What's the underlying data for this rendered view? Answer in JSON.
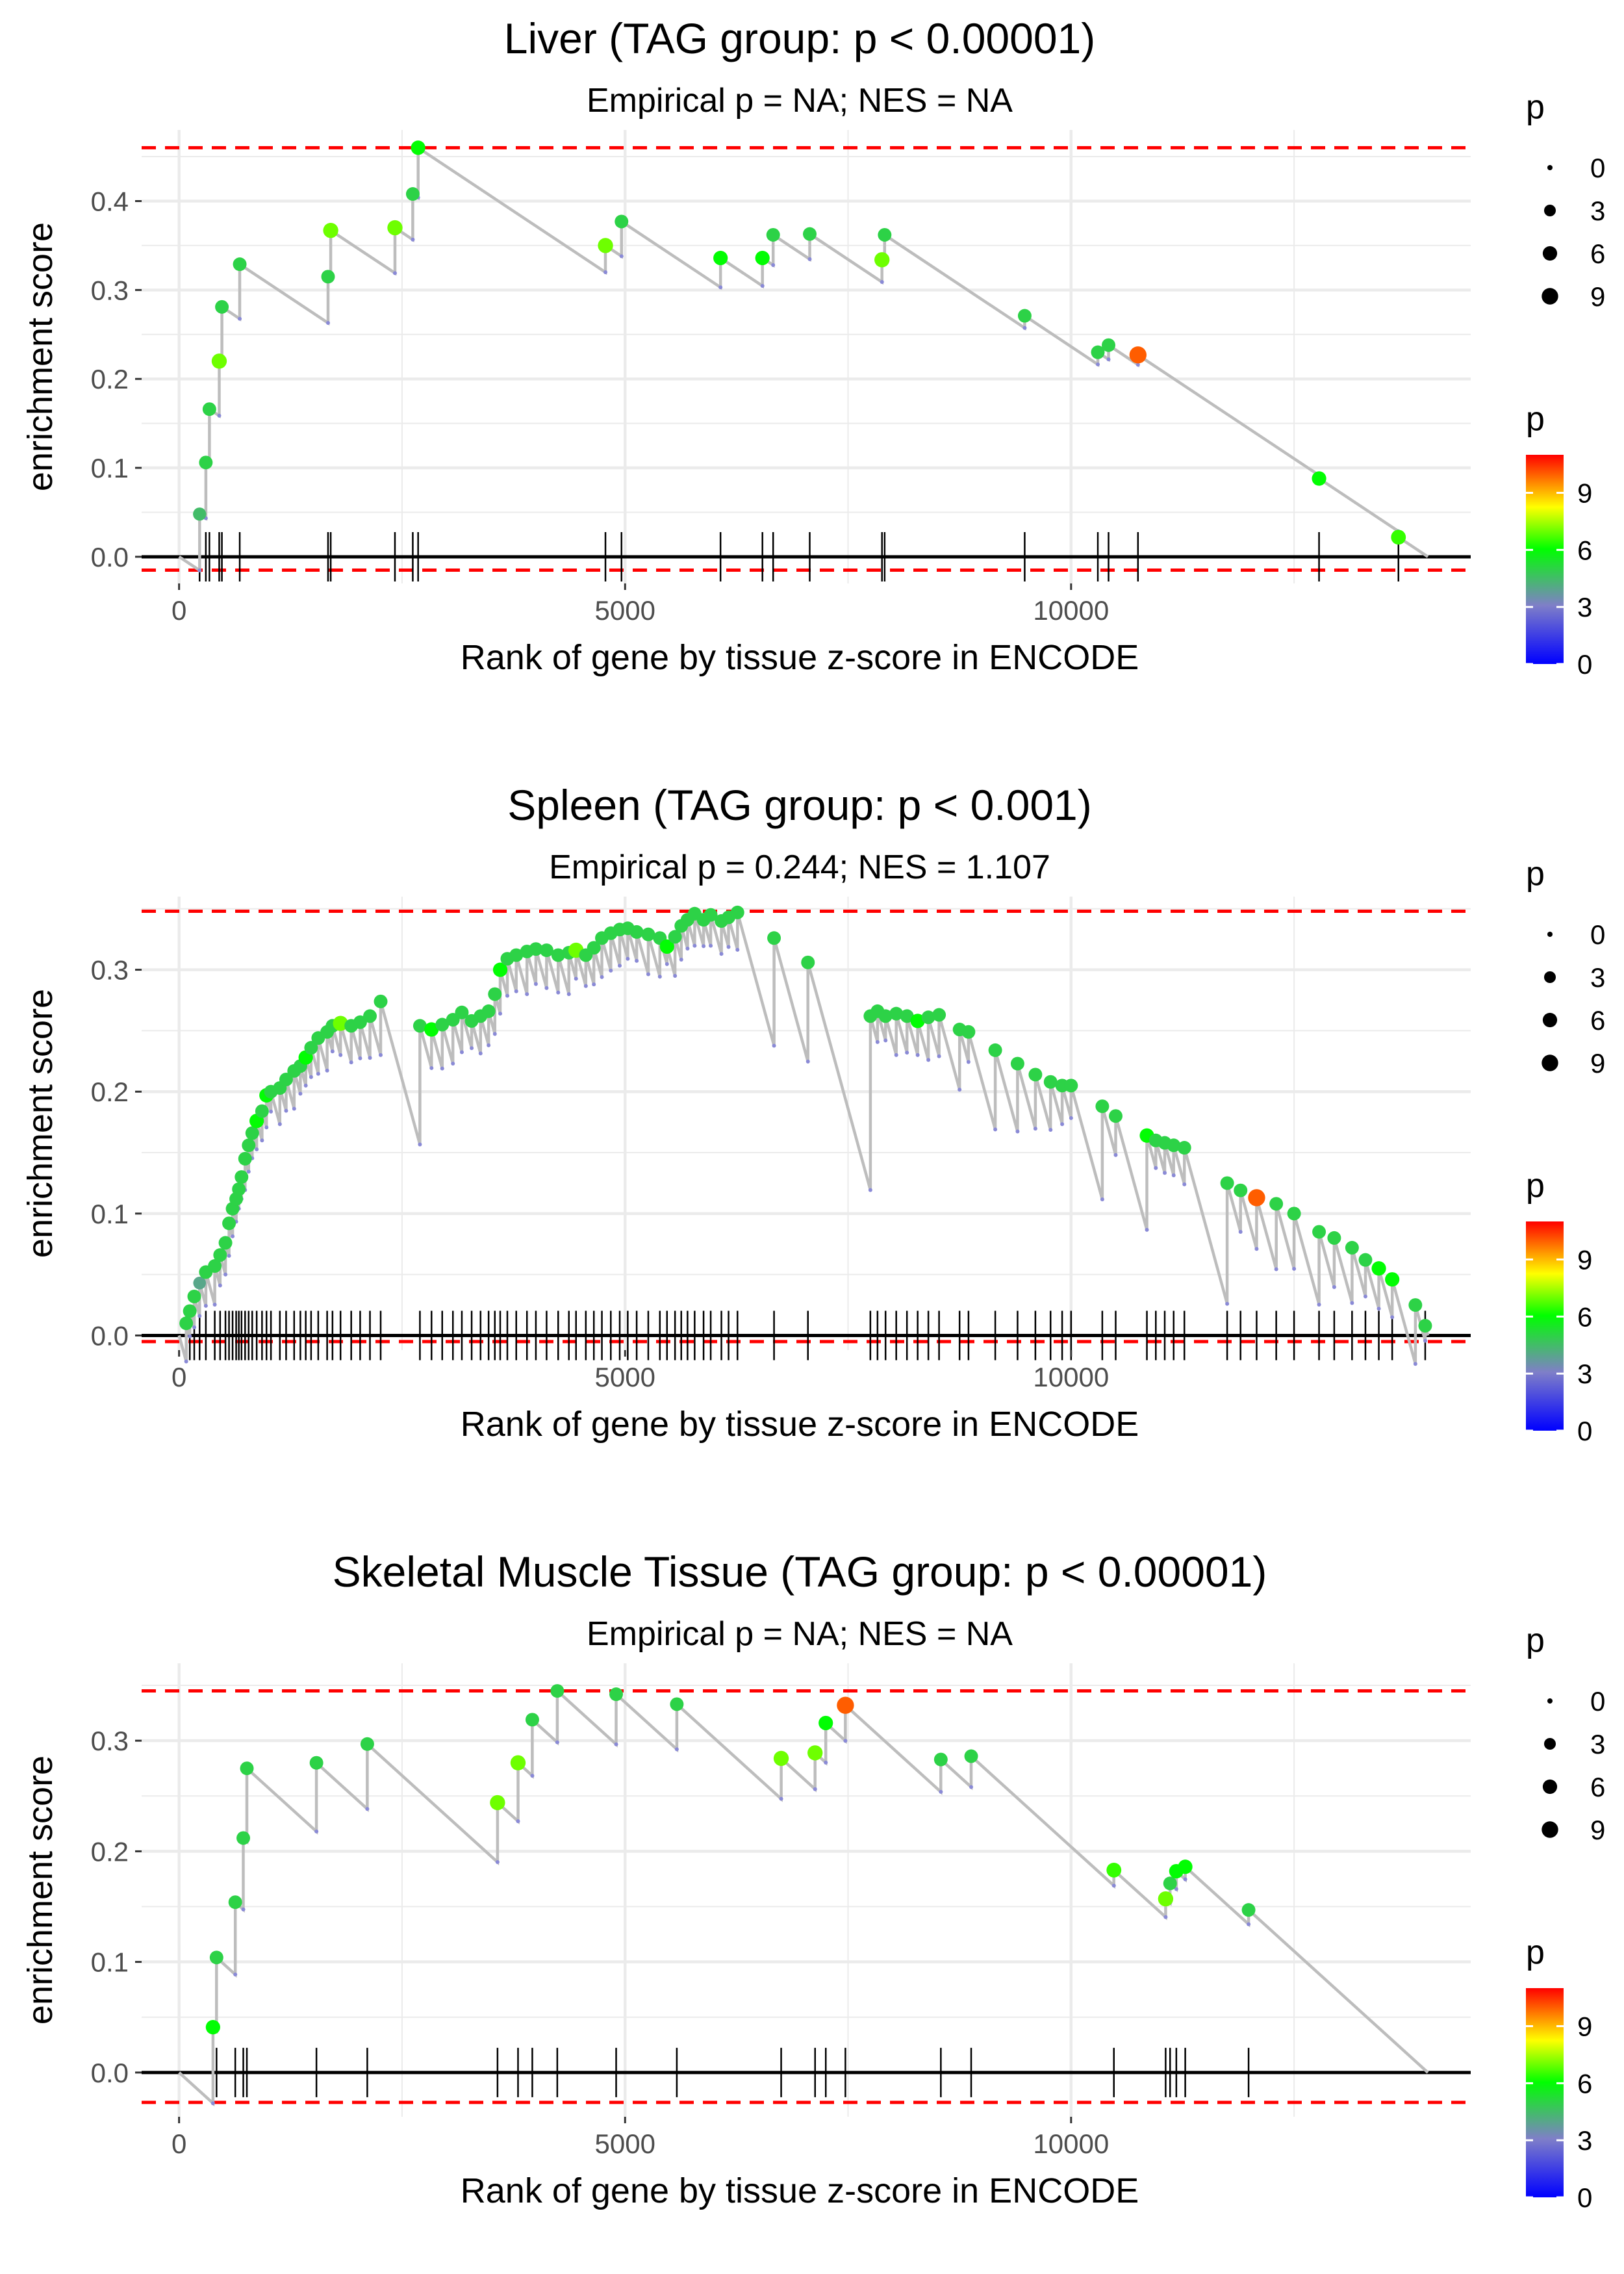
{
  "legend_labels": {
    "size_title": "p",
    "color_title": "p",
    "size_values": [
      "0",
      "3",
      "6",
      "9"
    ],
    "color_ticks": [
      "0",
      "3",
      "6",
      "9"
    ]
  },
  "colors": {
    "running_line": "#bdbdbd",
    "threshold_line": "#ff0000",
    "baseline": "#000000",
    "gridline": "#ebebeb",
    "gradient": [
      "#0000ff",
      "#7f7fc8",
      "#00ff00",
      "#ffff00",
      "#ff0000"
    ]
  },
  "chart_data": [
    {
      "type": "scatter",
      "title": "Liver (TAG group: p < 0.00001)",
      "subtitle": "Empirical p = NA; NES = NA",
      "xlabel": "Rank of gene by tissue z-score in ENCODE",
      "ylabel": "enrichment score",
      "xlim": [
        -420,
        14480
      ],
      "ylim": [
        -0.03,
        0.48
      ],
      "x_ticks": [
        0,
        5000,
        10000
      ],
      "x_tick_labels": [
        "0",
        "5000",
        "10000"
      ],
      "y_ticks": [
        0.0,
        0.1,
        0.2,
        0.3,
        0.4
      ],
      "y_tick_labels": [
        "0.0",
        "0.1",
        "0.2",
        "0.3",
        "0.4"
      ],
      "max_es": 0.46,
      "min_es": -0.015,
      "n_total": 14000,
      "hits": [
        {
          "x": 230,
          "es": 0.048,
          "p": 4.5
        },
        {
          "x": 300,
          "es": 0.106,
          "p": 5
        },
        {
          "x": 340,
          "es": 0.166,
          "p": 5
        },
        {
          "x": 450,
          "es": 0.22,
          "p": 7
        },
        {
          "x": 480,
          "es": 0.281,
          "p": 5
        },
        {
          "x": 680,
          "es": 0.329,
          "p": 5
        },
        {
          "x": 1670,
          "es": 0.315,
          "p": 5
        },
        {
          "x": 1700,
          "es": 0.367,
          "p": 7
        },
        {
          "x": 2420,
          "es": 0.37,
          "p": 7
        },
        {
          "x": 2620,
          "es": 0.408,
          "p": 5
        },
        {
          "x": 2680,
          "es": 0.46,
          "p": 6
        },
        {
          "x": 4780,
          "es": 0.35,
          "p": 7
        },
        {
          "x": 4960,
          "es": 0.377,
          "p": 5
        },
        {
          "x": 6070,
          "es": 0.336,
          "p": 6
        },
        {
          "x": 6540,
          "es": 0.336,
          "p": 6
        },
        {
          "x": 6660,
          "es": 0.362,
          "p": 5
        },
        {
          "x": 7070,
          "es": 0.363,
          "p": 5
        },
        {
          "x": 7880,
          "es": 0.334,
          "p": 7
        },
        {
          "x": 7910,
          "es": 0.362,
          "p": 5
        },
        {
          "x": 9480,
          "es": 0.271,
          "p": 5
        },
        {
          "x": 10300,
          "es": 0.23,
          "p": 5
        },
        {
          "x": 10420,
          "es": 0.238,
          "p": 5
        },
        {
          "x": 10750,
          "es": 0.227,
          "p": 10
        },
        {
          "x": 12780,
          "es": 0.088,
          "p": 6
        },
        {
          "x": 13670,
          "es": 0.022,
          "p": 6.5
        }
      ]
    },
    {
      "type": "scatter",
      "title": "Spleen (TAG group: p < 0.001)",
      "subtitle": "Empirical p = 0.244; NES = 1.107",
      "xlabel": "Rank of gene by tissue z-score in ENCODE",
      "ylabel": "enrichment score",
      "xlim": [
        -420,
        14480
      ],
      "ylim": [
        -0.012,
        0.36
      ],
      "x_ticks": [
        0,
        5000,
        10000
      ],
      "x_tick_labels": [
        "0",
        "5000",
        "10000"
      ],
      "y_ticks": [
        0.0,
        0.1,
        0.2,
        0.3
      ],
      "y_tick_labels": [
        "0.0",
        "0.1",
        "0.2",
        "0.3"
      ],
      "max_es": 0.348,
      "min_es": -0.005,
      "n_total": 14000,
      "hits": [
        {
          "x": 80,
          "es": 0.01,
          "p": 5
        },
        {
          "x": 120,
          "es": 0.02,
          "p": 5
        },
        {
          "x": 170,
          "es": 0.032,
          "p": 5
        },
        {
          "x": 230,
          "es": 0.043,
          "p": 4
        },
        {
          "x": 300,
          "es": 0.052,
          "p": 5
        },
        {
          "x": 400,
          "es": 0.057,
          "p": 5
        },
        {
          "x": 460,
          "es": 0.066,
          "p": 5
        },
        {
          "x": 520,
          "es": 0.076,
          "p": 5
        },
        {
          "x": 560,
          "es": 0.092,
          "p": 5
        },
        {
          "x": 600,
          "es": 0.104,
          "p": 5
        },
        {
          "x": 640,
          "es": 0.112,
          "p": 5
        },
        {
          "x": 670,
          "es": 0.12,
          "p": 5
        },
        {
          "x": 700,
          "es": 0.13,
          "p": 5
        },
        {
          "x": 740,
          "es": 0.145,
          "p": 5
        },
        {
          "x": 780,
          "es": 0.156,
          "p": 5
        },
        {
          "x": 820,
          "es": 0.166,
          "p": 5
        },
        {
          "x": 870,
          "es": 0.176,
          "p": 6
        },
        {
          "x": 930,
          "es": 0.184,
          "p": 5
        },
        {
          "x": 980,
          "es": 0.197,
          "p": 6
        },
        {
          "x": 1030,
          "es": 0.2,
          "p": 5
        },
        {
          "x": 1130,
          "es": 0.203,
          "p": 5
        },
        {
          "x": 1200,
          "es": 0.21,
          "p": 5
        },
        {
          "x": 1290,
          "es": 0.217,
          "p": 5
        },
        {
          "x": 1360,
          "es": 0.221,
          "p": 5
        },
        {
          "x": 1420,
          "es": 0.228,
          "p": 6
        },
        {
          "x": 1480,
          "es": 0.236,
          "p": 5
        },
        {
          "x": 1560,
          "es": 0.244,
          "p": 5
        },
        {
          "x": 1660,
          "es": 0.249,
          "p": 5
        },
        {
          "x": 1720,
          "es": 0.254,
          "p": 5
        },
        {
          "x": 1810,
          "es": 0.256,
          "p": 7
        },
        {
          "x": 1930,
          "es": 0.254,
          "p": 5
        },
        {
          "x": 2030,
          "es": 0.257,
          "p": 5
        },
        {
          "x": 2140,
          "es": 0.262,
          "p": 5
        },
        {
          "x": 2260,
          "es": 0.274,
          "p": 5
        },
        {
          "x": 2700,
          "es": 0.254,
          "p": 5
        },
        {
          "x": 2830,
          "es": 0.251,
          "p": 6
        },
        {
          "x": 2950,
          "es": 0.255,
          "p": 5
        },
        {
          "x": 3070,
          "es": 0.259,
          "p": 5
        },
        {
          "x": 3170,
          "es": 0.265,
          "p": 5
        },
        {
          "x": 3280,
          "es": 0.258,
          "p": 5
        },
        {
          "x": 3380,
          "es": 0.262,
          "p": 5
        },
        {
          "x": 3470,
          "es": 0.266,
          "p": 5
        },
        {
          "x": 3540,
          "es": 0.28,
          "p": 5
        },
        {
          "x": 3600,
          "es": 0.3,
          "p": 6
        },
        {
          "x": 3680,
          "es": 0.309,
          "p": 5
        },
        {
          "x": 3780,
          "es": 0.312,
          "p": 5
        },
        {
          "x": 3900,
          "es": 0.315,
          "p": 5
        },
        {
          "x": 4000,
          "es": 0.317,
          "p": 5
        },
        {
          "x": 4120,
          "es": 0.316,
          "p": 5
        },
        {
          "x": 4250,
          "es": 0.312,
          "p": 5
        },
        {
          "x": 4370,
          "es": 0.314,
          "p": 5
        },
        {
          "x": 4450,
          "es": 0.316,
          "p": 7
        },
        {
          "x": 4560,
          "es": 0.312,
          "p": 5
        },
        {
          "x": 4650,
          "es": 0.318,
          "p": 5
        },
        {
          "x": 4740,
          "es": 0.326,
          "p": 5
        },
        {
          "x": 4840,
          "es": 0.33,
          "p": 5
        },
        {
          "x": 4940,
          "es": 0.333,
          "p": 5
        },
        {
          "x": 5030,
          "es": 0.334,
          "p": 5
        },
        {
          "x": 5130,
          "es": 0.331,
          "p": 5
        },
        {
          "x": 5260,
          "es": 0.329,
          "p": 5
        },
        {
          "x": 5390,
          "es": 0.326,
          "p": 5
        },
        {
          "x": 5470,
          "es": 0.319,
          "p": 6
        },
        {
          "x": 5560,
          "es": 0.327,
          "p": 5
        },
        {
          "x": 5630,
          "es": 0.336,
          "p": 5
        },
        {
          "x": 5700,
          "es": 0.341,
          "p": 5
        },
        {
          "x": 5780,
          "es": 0.346,
          "p": 5
        },
        {
          "x": 5880,
          "es": 0.341,
          "p": 5
        },
        {
          "x": 5960,
          "es": 0.345,
          "p": 5
        },
        {
          "x": 6080,
          "es": 0.34,
          "p": 5
        },
        {
          "x": 6160,
          "es": 0.343,
          "p": 5
        },
        {
          "x": 6260,
          "es": 0.347,
          "p": 5
        },
        {
          "x": 6670,
          "es": 0.326,
          "p": 5
        },
        {
          "x": 7050,
          "es": 0.306,
          "p": 5
        },
        {
          "x": 7750,
          "es": 0.262,
          "p": 5
        },
        {
          "x": 7830,
          "es": 0.266,
          "p": 5
        },
        {
          "x": 7920,
          "es": 0.262,
          "p": 5
        },
        {
          "x": 8040,
          "es": 0.264,
          "p": 5
        },
        {
          "x": 8160,
          "es": 0.262,
          "p": 5
        },
        {
          "x": 8280,
          "es": 0.258,
          "p": 6
        },
        {
          "x": 8400,
          "es": 0.261,
          "p": 5
        },
        {
          "x": 8520,
          "es": 0.263,
          "p": 5
        },
        {
          "x": 8750,
          "es": 0.251,
          "p": 5
        },
        {
          "x": 8850,
          "es": 0.249,
          "p": 5
        },
        {
          "x": 9150,
          "es": 0.234,
          "p": 5
        },
        {
          "x": 9400,
          "es": 0.223,
          "p": 5
        },
        {
          "x": 9600,
          "es": 0.214,
          "p": 5
        },
        {
          "x": 9770,
          "es": 0.208,
          "p": 5
        },
        {
          "x": 9900,
          "es": 0.205,
          "p": 5
        },
        {
          "x": 10000,
          "es": 0.205,
          "p": 5
        },
        {
          "x": 10350,
          "es": 0.188,
          "p": 5
        },
        {
          "x": 10500,
          "es": 0.18,
          "p": 5
        },
        {
          "x": 10850,
          "es": 0.164,
          "p": 6
        },
        {
          "x": 10950,
          "es": 0.16,
          "p": 5
        },
        {
          "x": 11050,
          "es": 0.158,
          "p": 5
        },
        {
          "x": 11150,
          "es": 0.156,
          "p": 5
        },
        {
          "x": 11270,
          "es": 0.154,
          "p": 5
        },
        {
          "x": 11750,
          "es": 0.125,
          "p": 5
        },
        {
          "x": 11900,
          "es": 0.119,
          "p": 5
        },
        {
          "x": 12080,
          "es": 0.113,
          "p": 10
        },
        {
          "x": 12300,
          "es": 0.108,
          "p": 5
        },
        {
          "x": 12500,
          "es": 0.1,
          "p": 5
        },
        {
          "x": 12780,
          "es": 0.085,
          "p": 5
        },
        {
          "x": 12950,
          "es": 0.08,
          "p": 5
        },
        {
          "x": 13150,
          "es": 0.072,
          "p": 5
        },
        {
          "x": 13300,
          "es": 0.062,
          "p": 5
        },
        {
          "x": 13450,
          "es": 0.055,
          "p": 6
        },
        {
          "x": 13600,
          "es": 0.046,
          "p": 6
        },
        {
          "x": 13860,
          "es": 0.025,
          "p": 5
        },
        {
          "x": 13970,
          "es": 0.008,
          "p": 5
        }
      ]
    },
    {
      "type": "scatter",
      "title": "Skeletal Muscle Tissue (TAG group: p < 0.00001)",
      "subtitle": "Empirical p = NA; NES = NA",
      "xlabel": "Rank of gene by tissue z-score in ENCODE",
      "ylabel": "enrichment score",
      "xlim": [
        -420,
        14480
      ],
      "ylim": [
        -0.04,
        0.37
      ],
      "x_ticks": [
        0,
        5000,
        10000
      ],
      "x_tick_labels": [
        "0",
        "5000",
        "10000"
      ],
      "y_ticks": [
        0.0,
        0.1,
        0.2,
        0.3
      ],
      "y_tick_labels": [
        "0.0",
        "0.1",
        "0.2",
        "0.3"
      ],
      "max_es": 0.345,
      "min_es": -0.027,
      "n_total": 14000,
      "hits": [
        {
          "x": 380,
          "es": 0.041,
          "p": 6
        },
        {
          "x": 420,
          "es": 0.104,
          "p": 5
        },
        {
          "x": 630,
          "es": 0.154,
          "p": 5
        },
        {
          "x": 720,
          "es": 0.212,
          "p": 5
        },
        {
          "x": 760,
          "es": 0.275,
          "p": 5
        },
        {
          "x": 1540,
          "es": 0.28,
          "p": 5
        },
        {
          "x": 2110,
          "es": 0.297,
          "p": 5
        },
        {
          "x": 3570,
          "es": 0.244,
          "p": 7
        },
        {
          "x": 3800,
          "es": 0.28,
          "p": 7
        },
        {
          "x": 3960,
          "es": 0.319,
          "p": 5
        },
        {
          "x": 4240,
          "es": 0.345,
          "p": 5
        },
        {
          "x": 4900,
          "es": 0.342,
          "p": 5
        },
        {
          "x": 5580,
          "es": 0.333,
          "p": 5
        },
        {
          "x": 6750,
          "es": 0.284,
          "p": 7
        },
        {
          "x": 7130,
          "es": 0.289,
          "p": 7
        },
        {
          "x": 7250,
          "es": 0.316,
          "p": 6
        },
        {
          "x": 7470,
          "es": 0.332,
          "p": 10
        },
        {
          "x": 8540,
          "es": 0.283,
          "p": 5
        },
        {
          "x": 8880,
          "es": 0.286,
          "p": 5
        },
        {
          "x": 10480,
          "es": 0.183,
          "p": 6.5
        },
        {
          "x": 11060,
          "es": 0.157,
          "p": 7
        },
        {
          "x": 11110,
          "es": 0.171,
          "p": 5
        },
        {
          "x": 11180,
          "es": 0.182,
          "p": 6
        },
        {
          "x": 11280,
          "es": 0.186,
          "p": 6
        },
        {
          "x": 11990,
          "es": 0.147,
          "p": 5
        }
      ]
    }
  ]
}
